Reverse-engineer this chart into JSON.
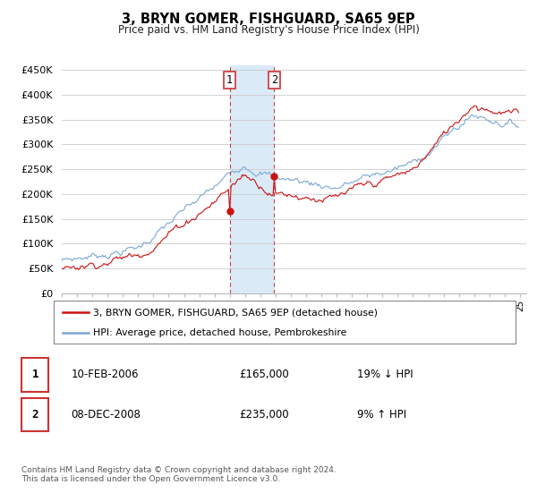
{
  "title": "3, BRYN GOMER, FISHGUARD, SA65 9EP",
  "subtitle": "Price paid vs. HM Land Registry's House Price Index (HPI)",
  "ylim": [
    0,
    460000
  ],
  "yticks": [
    0,
    50000,
    100000,
    150000,
    200000,
    250000,
    300000,
    350000,
    400000,
    450000
  ],
  "ytick_labels": [
    "£0",
    "£50K",
    "£100K",
    "£150K",
    "£200K",
    "£250K",
    "£300K",
    "£350K",
    "£400K",
    "£450K"
  ],
  "hpi_color": "#7ba7d4",
  "sale_color": "#cc1111",
  "shading_color": "#daeaf7",
  "marker1_year": 2006.08,
  "marker2_year": 2008.92,
  "marker1_price": 165000,
  "marker2_price": 235000,
  "marker1_label": "10-FEB-2006",
  "marker1_price_str": "£165,000",
  "marker1_hpi": "19% ↓ HPI",
  "marker2_label": "08-DEC-2008",
  "marker2_price_str": "£235,000",
  "marker2_hpi": "9% ↑ HPI",
  "legend1": "3, BRYN GOMER, FISHGUARD, SA65 9EP (detached house)",
  "legend2": "HPI: Average price, detached house, Pembrokeshire",
  "footer": "Contains HM Land Registry data © Crown copyright and database right 2024.\nThis data is licensed under the Open Government Licence v3.0.",
  "background_color": "#ffffff",
  "grid_color": "#cccccc",
  "year_start": 1995,
  "year_end": 2025
}
